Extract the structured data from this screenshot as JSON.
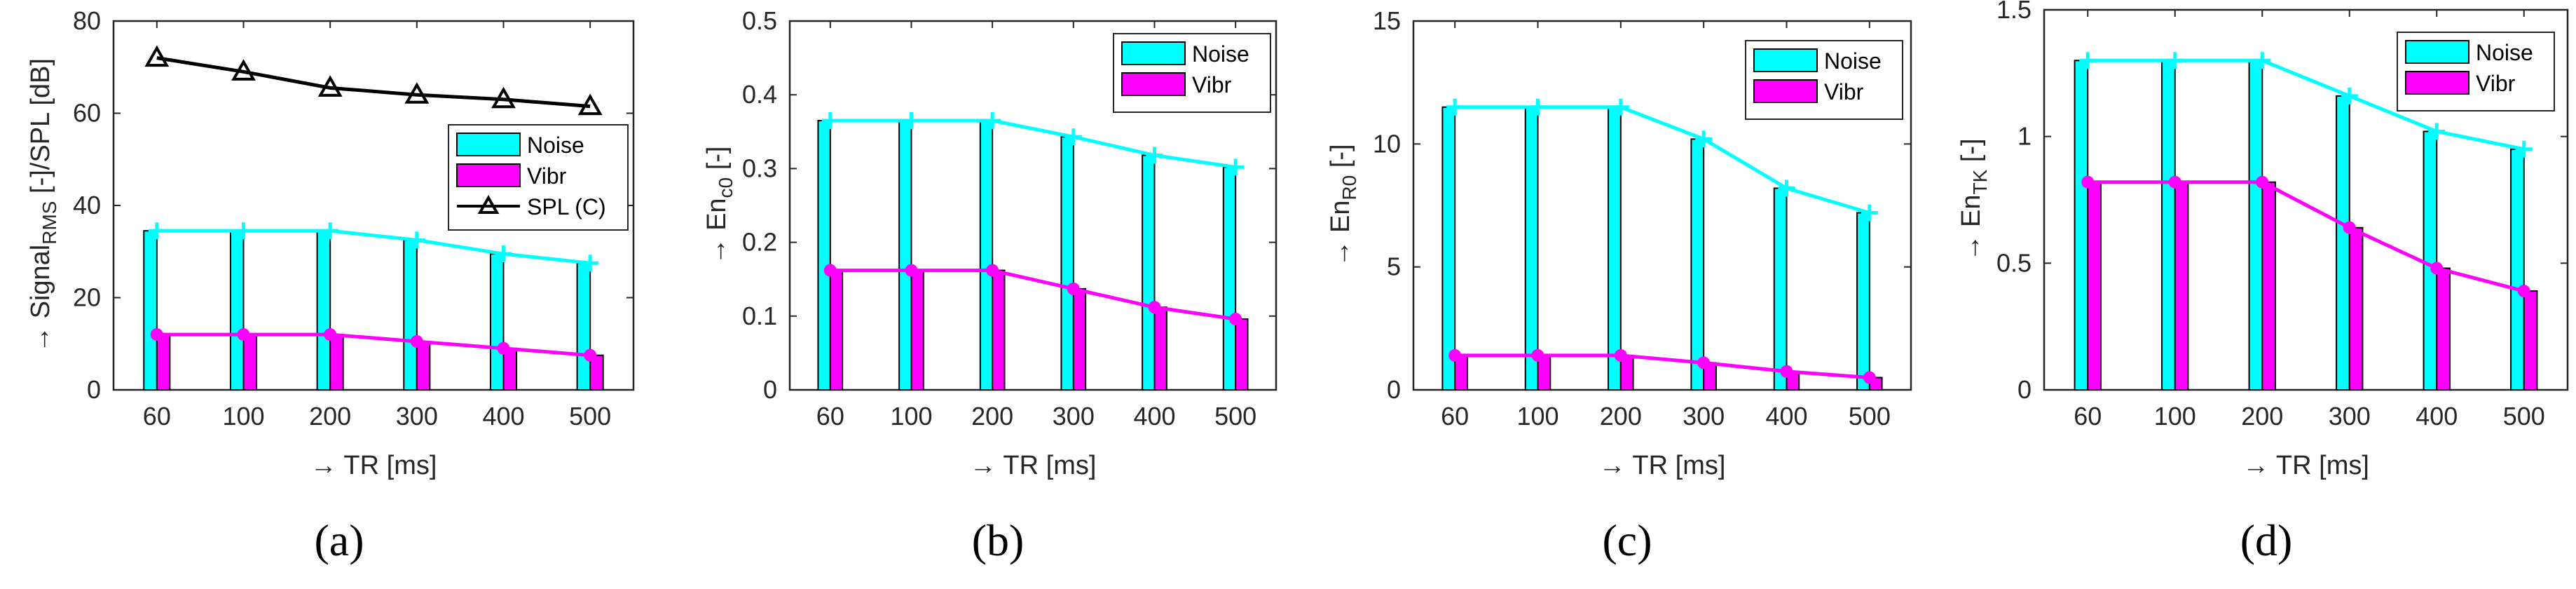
{
  "colors": {
    "noise": "#00FFFF",
    "vibr": "#FF00FF",
    "spl": "#000000",
    "axis": "#262626"
  },
  "chart_data": [
    {
      "type": "bar",
      "panel_label": "(a)",
      "categories": [
        "60",
        "100",
        "200",
        "300",
        "400",
        "500"
      ],
      "xlabel": "→  TR [ms]",
      "ylabel_parts": [
        "→  Signal",
        "RMS",
        " [-]/SPL [dB]"
      ],
      "ylim": [
        0,
        80
      ],
      "yticks": [
        "0",
        "20",
        "40",
        "60",
        "80"
      ],
      "ytick_values": [
        0,
        20,
        40,
        60,
        80
      ],
      "series": [
        {
          "name": "Noise",
          "kind": "bar+line",
          "color": "#00FFFF",
          "values": [
            34.5,
            34.5,
            34.5,
            32.5,
            29.5,
            27.5
          ]
        },
        {
          "name": "Vibr",
          "kind": "bar+line",
          "color": "#FF00FF",
          "values": [
            12,
            12,
            12,
            10.5,
            9,
            7.5
          ]
        },
        {
          "name": "SPL (C)",
          "kind": "line",
          "color": "#000000",
          "marker": "triangle",
          "values": [
            72,
            69,
            65.5,
            64,
            63,
            61.5
          ]
        }
      ],
      "legend": {
        "position": "right",
        "entries": [
          "Noise",
          "Vibr",
          "SPL (C)"
        ]
      }
    },
    {
      "type": "bar",
      "panel_label": "(b)",
      "categories": [
        "60",
        "100",
        "200",
        "300",
        "400",
        "500"
      ],
      "xlabel": "→  TR [ms]",
      "ylabel_parts": [
        "→  En",
        "c0",
        " [-]"
      ],
      "ylim": [
        0,
        0.5
      ],
      "yticks": [
        "0",
        "0.1",
        "0.2",
        "0.3",
        "0.4",
        "0.5"
      ],
      "ytick_values": [
        0,
        0.1,
        0.2,
        0.3,
        0.4,
        0.5
      ],
      "series": [
        {
          "name": "Noise",
          "kind": "bar+line",
          "color": "#00FFFF",
          "values": [
            0.365,
            0.365,
            0.365,
            0.343,
            0.318,
            0.302
          ]
        },
        {
          "name": "Vibr",
          "kind": "bar+line",
          "color": "#FF00FF",
          "values": [
            0.162,
            0.162,
            0.162,
            0.137,
            0.112,
            0.096
          ]
        }
      ],
      "legend": {
        "position": "top-right",
        "entries": [
          "Noise",
          "Vibr"
        ]
      }
    },
    {
      "type": "bar",
      "panel_label": "(c)",
      "categories": [
        "60",
        "100",
        "200",
        "300",
        "400",
        "500"
      ],
      "xlabel": "→  TR [ms]",
      "ylabel_parts": [
        "→  En",
        "R0",
        " [-]"
      ],
      "ylim": [
        0,
        15
      ],
      "yticks": [
        "0",
        "5",
        "10",
        "15"
      ],
      "ytick_values": [
        0,
        5,
        10,
        15
      ],
      "series": [
        {
          "name": "Noise",
          "kind": "bar+line",
          "color": "#00FFFF",
          "values": [
            11.5,
            11.5,
            11.5,
            10.2,
            8.2,
            7.2
          ]
        },
        {
          "name": "Vibr",
          "kind": "bar+line",
          "color": "#FF00FF",
          "values": [
            1.4,
            1.4,
            1.4,
            1.1,
            0.75,
            0.5
          ]
        }
      ],
      "legend": {
        "position": "top-right",
        "entries": [
          "Noise",
          "Vibr"
        ]
      }
    },
    {
      "type": "bar",
      "panel_label": "(d)",
      "categories": [
        "60",
        "100",
        "200",
        "300",
        "400",
        "500"
      ],
      "xlabel": "→  TR [ms]",
      "ylabel_parts": [
        "→  En",
        "TK",
        " [-]"
      ],
      "ylim": [
        0,
        1.5
      ],
      "yticks": [
        "0",
        "0.5",
        "1",
        "1.5"
      ],
      "ytick_values": [
        0,
        0.5,
        1,
        1.5
      ],
      "series": [
        {
          "name": "Noise",
          "kind": "bar+line",
          "color": "#00FFFF",
          "values": [
            1.3,
            1.3,
            1.3,
            1.16,
            1.02,
            0.95
          ]
        },
        {
          "name": "Vibr",
          "kind": "bar+line",
          "color": "#FF00FF",
          "values": [
            0.82,
            0.82,
            0.82,
            0.64,
            0.48,
            0.39
          ]
        }
      ],
      "legend": {
        "position": "top-right",
        "entries": [
          "Noise",
          "Vibr"
        ]
      }
    }
  ]
}
